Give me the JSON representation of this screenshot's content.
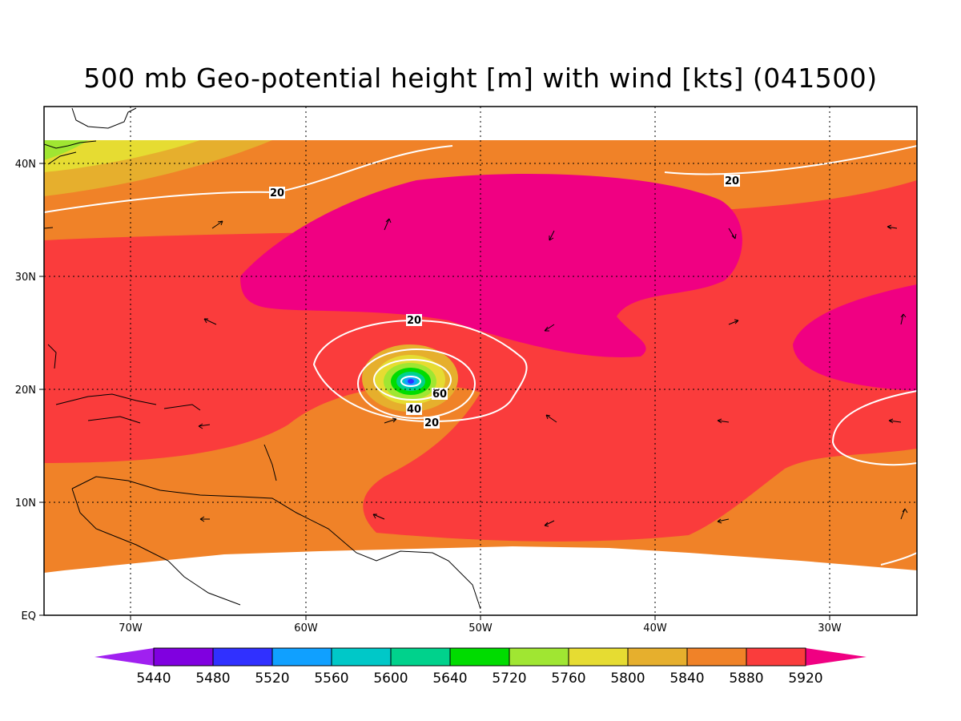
{
  "title": "500 mb Geo-potential height [m] with wind [kts] (041500)",
  "map": {
    "lon_ticks": [
      "70W",
      "60W",
      "50W",
      "40W",
      "30W"
    ],
    "lat_ticks": [
      "EQ",
      "10N",
      "20N",
      "30N",
      "40N"
    ],
    "grid": true
  },
  "colorbar": {
    "levels": [
      "5440",
      "5480",
      "5520",
      "5560",
      "5600",
      "5640",
      "5720",
      "5760",
      "5800",
      "5840",
      "5880",
      "5920"
    ],
    "colors": [
      "#a020f0",
      "#8000e0",
      "#3030ff",
      "#10a0ff",
      "#00c8c8",
      "#00d28c",
      "#00dc00",
      "#a0e632",
      "#e6dc32",
      "#e6af2d",
      "#f08228",
      "#fa3c3c",
      "#f00082"
    ]
  },
  "wind_contours": {
    "labels": [
      "20",
      "20",
      "20",
      "60",
      "40",
      "20"
    ]
  },
  "chart_data": {
    "type": "heatmap",
    "title": "500 mb Geo-potential height [m] with wind [kts] (041500)",
    "fields": [
      "500 mb geopotential height [m]",
      "wind [kts]"
    ],
    "x_range": [
      "75W",
      "25W"
    ],
    "y_range": [
      "EQ",
      "45N"
    ],
    "contour_levels_m": [
      5440,
      5480,
      5520,
      5560,
      5600,
      5640,
      5720,
      5760,
      5800,
      5840,
      5880,
      5920
    ],
    "wind_contour_labels_kts": [
      20,
      40,
      60
    ],
    "cyclone_center": {
      "lon": "54W",
      "lat": "21N"
    },
    "legend_placement": "bottom"
  }
}
